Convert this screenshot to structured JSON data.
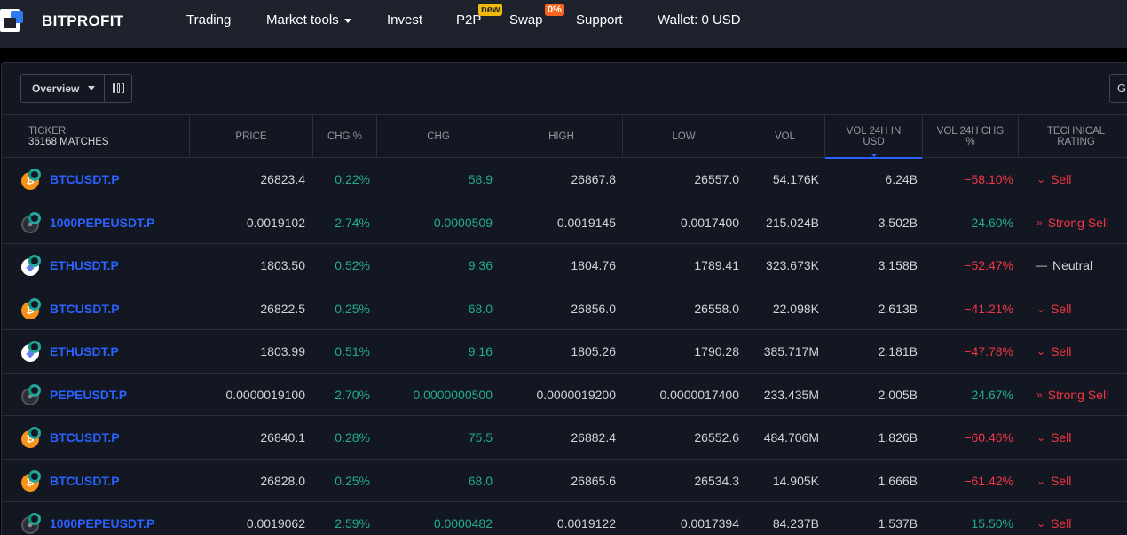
{
  "brand": {
    "name": "BITPROFIT"
  },
  "nav": {
    "items": [
      {
        "label": "Trading"
      },
      {
        "label": "Market tools"
      },
      {
        "label": "Invest"
      },
      {
        "label": "P2P",
        "badge": "new"
      },
      {
        "label": "Swap",
        "badge": "0%"
      },
      {
        "label": "Support"
      },
      {
        "label": "Wallet: 0 USD"
      }
    ]
  },
  "toolbar": {
    "view_label": "Overview",
    "right_button_label": "G"
  },
  "table": {
    "headers": {
      "ticker": "TICKER",
      "matches": "36168 MATCHES",
      "price": "PRICE",
      "chg_pct": "CHG %",
      "chg": "CHG",
      "high": "HIGH",
      "low": "LOW",
      "vol": "VOL",
      "vol24_line1": "VOL 24H IN",
      "vol24_line2": "USD",
      "vol24chg_line1": "VOL 24H CHG",
      "vol24chg_line2": "%",
      "rating_line1": "TECHNICAL",
      "rating_line2": "RATING"
    },
    "rows": [
      {
        "icon": "btc",
        "ticker": "BTCUSDT.P",
        "price": "26823.4",
        "chg_pct": "0.22%",
        "chg": "58.9",
        "high": "26867.8",
        "low": "26557.0",
        "vol": "54.176K",
        "vol24": "6.24B",
        "vol24chg": "−58.10%",
        "vol24chg_dir": "red",
        "rating": "Sell",
        "rating_kind": "sell"
      },
      {
        "icon": "pepe",
        "ticker": "1000PEPEUSDT.P",
        "price": "0.0019102",
        "chg_pct": "2.74%",
        "chg": "0.0000509",
        "high": "0.0019145",
        "low": "0.0017400",
        "vol": "215.024B",
        "vol24": "3.502B",
        "vol24chg": "24.60%",
        "vol24chg_dir": "green",
        "rating": "Strong Sell",
        "rating_kind": "strong"
      },
      {
        "icon": "eth",
        "ticker": "ETHUSDT.P",
        "price": "1803.50",
        "chg_pct": "0.52%",
        "chg": "9.36",
        "high": "1804.76",
        "low": "1789.41",
        "vol": "323.673K",
        "vol24": "3.158B",
        "vol24chg": "−52.47%",
        "vol24chg_dir": "red",
        "rating": "Neutral",
        "rating_kind": "neutral"
      },
      {
        "icon": "btc",
        "ticker": "BTCUSDT.P",
        "price": "26822.5",
        "chg_pct": "0.25%",
        "chg": "68.0",
        "high": "26856.0",
        "low": "26558.0",
        "vol": "22.098K",
        "vol24": "2.613B",
        "vol24chg": "−41.21%",
        "vol24chg_dir": "red",
        "rating": "Sell",
        "rating_kind": "sell"
      },
      {
        "icon": "eth",
        "ticker": "ETHUSDT.P",
        "price": "1803.99",
        "chg_pct": "0.51%",
        "chg": "9.16",
        "high": "1805.26",
        "low": "1790.28",
        "vol": "385.717M",
        "vol24": "2.181B",
        "vol24chg": "−47.78%",
        "vol24chg_dir": "red",
        "rating": "Sell",
        "rating_kind": "sell"
      },
      {
        "icon": "pepe",
        "ticker": "PEPEUSDT.P",
        "price": "0.0000019100",
        "chg_pct": "2.70%",
        "chg": "0.0000000500",
        "high": "0.0000019200",
        "low": "0.0000017400",
        "vol": "233.435M",
        "vol24": "2.005B",
        "vol24chg": "24.67%",
        "vol24chg_dir": "green",
        "rating": "Strong Sell",
        "rating_kind": "strong"
      },
      {
        "icon": "btc",
        "ticker": "BTCUSDT.P",
        "price": "26840.1",
        "chg_pct": "0.28%",
        "chg": "75.5",
        "high": "26882.4",
        "low": "26552.6",
        "vol": "484.706M",
        "vol24": "1.826B",
        "vol24chg": "−60.46%",
        "vol24chg_dir": "red",
        "rating": "Sell",
        "rating_kind": "sell"
      },
      {
        "icon": "btc",
        "ticker": "BTCUSDT.P",
        "price": "26828.0",
        "chg_pct": "0.25%",
        "chg": "68.0",
        "high": "26865.6",
        "low": "26534.3",
        "vol": "14.905K",
        "vol24": "1.666B",
        "vol24chg": "−61.42%",
        "vol24chg_dir": "red",
        "rating": "Sell",
        "rating_kind": "sell"
      },
      {
        "icon": "pepe",
        "ticker": "1000PEPEUSDT.P",
        "price": "0.0019062",
        "chg_pct": "2.59%",
        "chg": "0.0000482",
        "high": "0.0019122",
        "low": "0.0017394",
        "vol": "84.237B",
        "vol24": "1.537B",
        "vol24chg": "15.50%",
        "vol24chg_dir": "green",
        "rating": "Sell",
        "rating_kind": "sell"
      }
    ]
  }
}
